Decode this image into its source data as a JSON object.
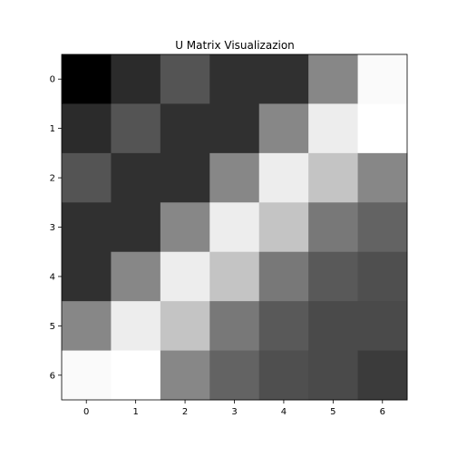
{
  "chart_data": {
    "type": "heatmap",
    "title": "U Matrix Visualizazion",
    "xlabel": "",
    "ylabel": "",
    "x_tick_labels": [
      "0",
      "1",
      "2",
      "3",
      "4",
      "5",
      "6"
    ],
    "y_tick_labels": [
      "0",
      "1",
      "2",
      "3",
      "4",
      "5",
      "6"
    ],
    "colormap": "gray",
    "grid": false,
    "values": [
      [
        0.0,
        0.17,
        0.33,
        0.19,
        0.19,
        0.53,
        0.98
      ],
      [
        0.17,
        0.33,
        0.19,
        0.19,
        0.53,
        0.93,
        1.0
      ],
      [
        0.33,
        0.19,
        0.19,
        0.53,
        0.93,
        0.77,
        0.53
      ],
      [
        0.19,
        0.19,
        0.53,
        0.93,
        0.77,
        0.47,
        0.39
      ],
      [
        0.19,
        0.53,
        0.93,
        0.77,
        0.47,
        0.35,
        0.31
      ],
      [
        0.53,
        0.93,
        0.77,
        0.47,
        0.35,
        0.29,
        0.29
      ],
      [
        0.98,
        1.0,
        0.53,
        0.39,
        0.31,
        0.29,
        0.23
      ]
    ]
  }
}
